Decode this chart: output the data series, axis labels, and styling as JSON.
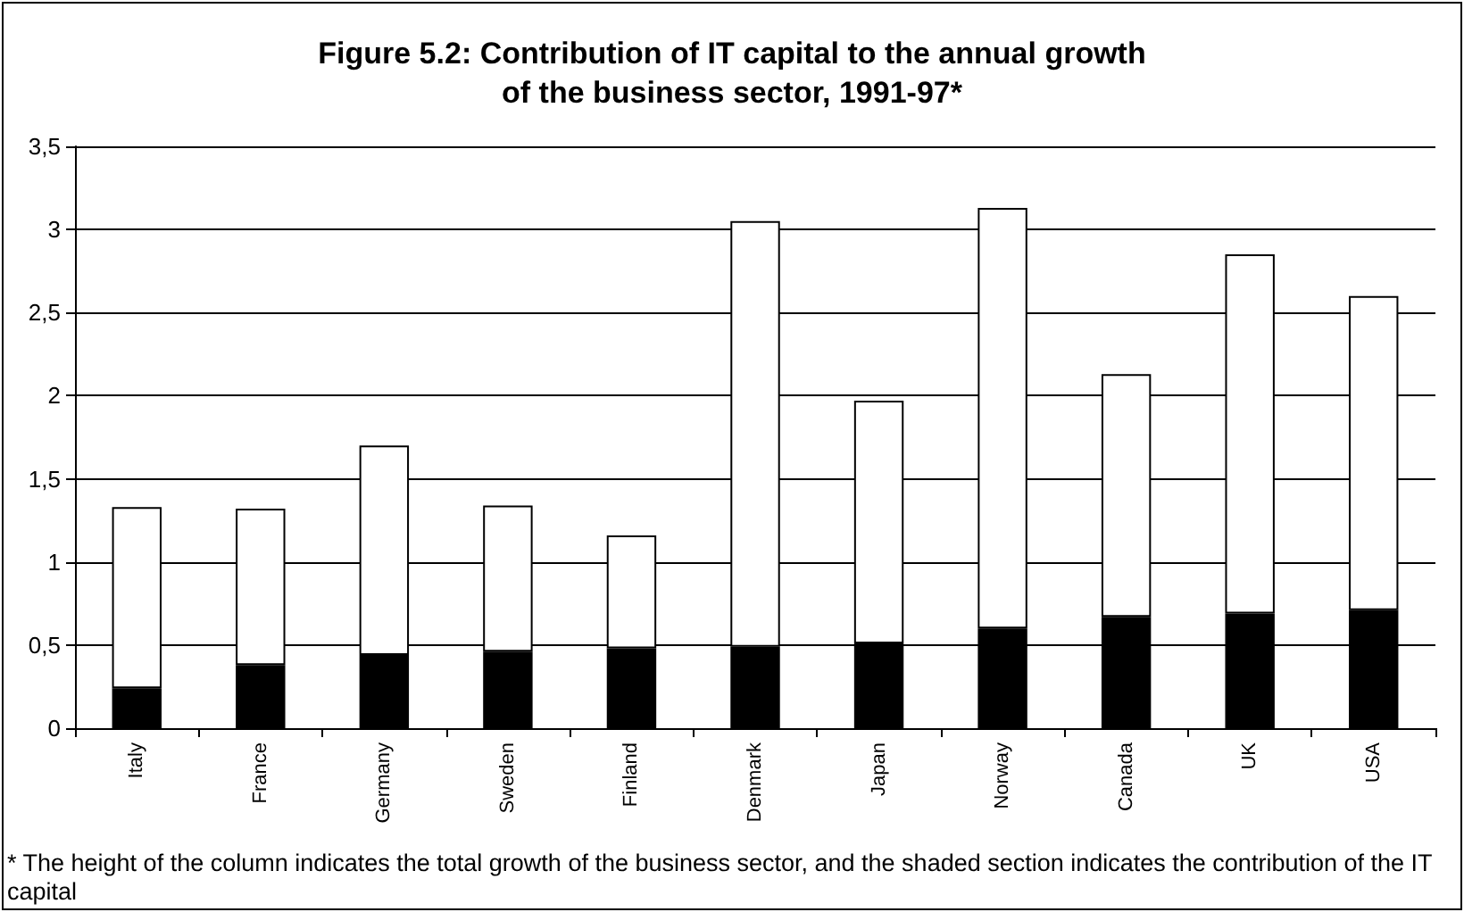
{
  "chart_data": {
    "type": "bar",
    "title": "Figure 5.2: Contribution of IT capital to the annual growth\nof the business sector, 1991-97*",
    "categories": [
      "Italy",
      "France",
      "Germany",
      "Sweden",
      "Finland",
      "Denmark",
      "Japan",
      "Norway",
      "Canada",
      "UK",
      "USA"
    ],
    "series": [
      {
        "color": "#000000",
        "values": [
          0.24,
          0.38,
          0.44,
          0.46,
          0.48,
          0.49,
          0.51,
          0.6,
          0.67,
          0.69,
          0.71
        ]
      },
      {
        "color": "#ffffff",
        "values": [
          1.09,
          0.94,
          1.26,
          0.88,
          0.68,
          2.56,
          1.46,
          2.53,
          1.46,
          2.16,
          1.89
        ]
      }
    ],
    "stacked": true,
    "ylim": [
      0,
      3.5
    ],
    "yticks": [
      0,
      {
        "value": 0.5,
        "label": "0,5"
      },
      1,
      {
        "value": 1.5,
        "label": "1,5"
      },
      2,
      {
        "value": 2.5,
        "label": "2,5"
      },
      3,
      {
        "value": 3.5,
        "label": "3,5"
      }
    ],
    "grid": "y",
    "annotations": [
      "* The height of the column indicates the total  growth of the business sector, and the shaded section indicates the contribution of the IT capital"
    ]
  }
}
